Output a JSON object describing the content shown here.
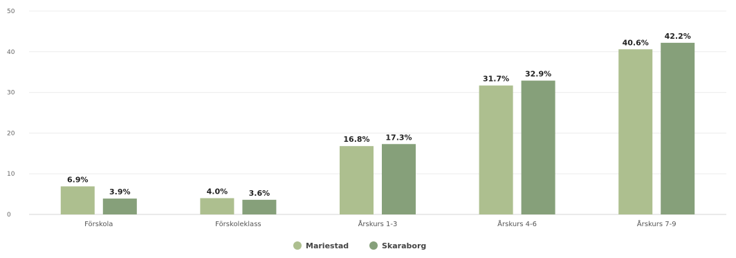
{
  "chart_data": {
    "type": "bar",
    "categories": [
      "Förskola",
      "Förskoleklass",
      "Årskurs 1-3",
      "Årskurs 4-6",
      "Årskurs 7-9"
    ],
    "series": [
      {
        "name": "Mariestad",
        "color": "#adbf8f",
        "values": [
          6.9,
          4.0,
          16.8,
          31.7,
          40.6
        ],
        "labels": [
          "6.9%",
          "4.0%",
          "16.8%",
          "31.7%",
          "40.6%"
        ]
      },
      {
        "name": "Skaraborg",
        "color": "#86a07a",
        "values": [
          3.9,
          3.6,
          17.3,
          32.9,
          42.2
        ],
        "labels": [
          "3.9%",
          "3.6%",
          "17.3%",
          "32.9%",
          "42.2%"
        ]
      }
    ],
    "yticks": [
      0,
      10,
      20,
      30,
      40,
      50
    ],
    "ylim": [
      0,
      50
    ],
    "grid": true,
    "legend": "bottom-center"
  }
}
